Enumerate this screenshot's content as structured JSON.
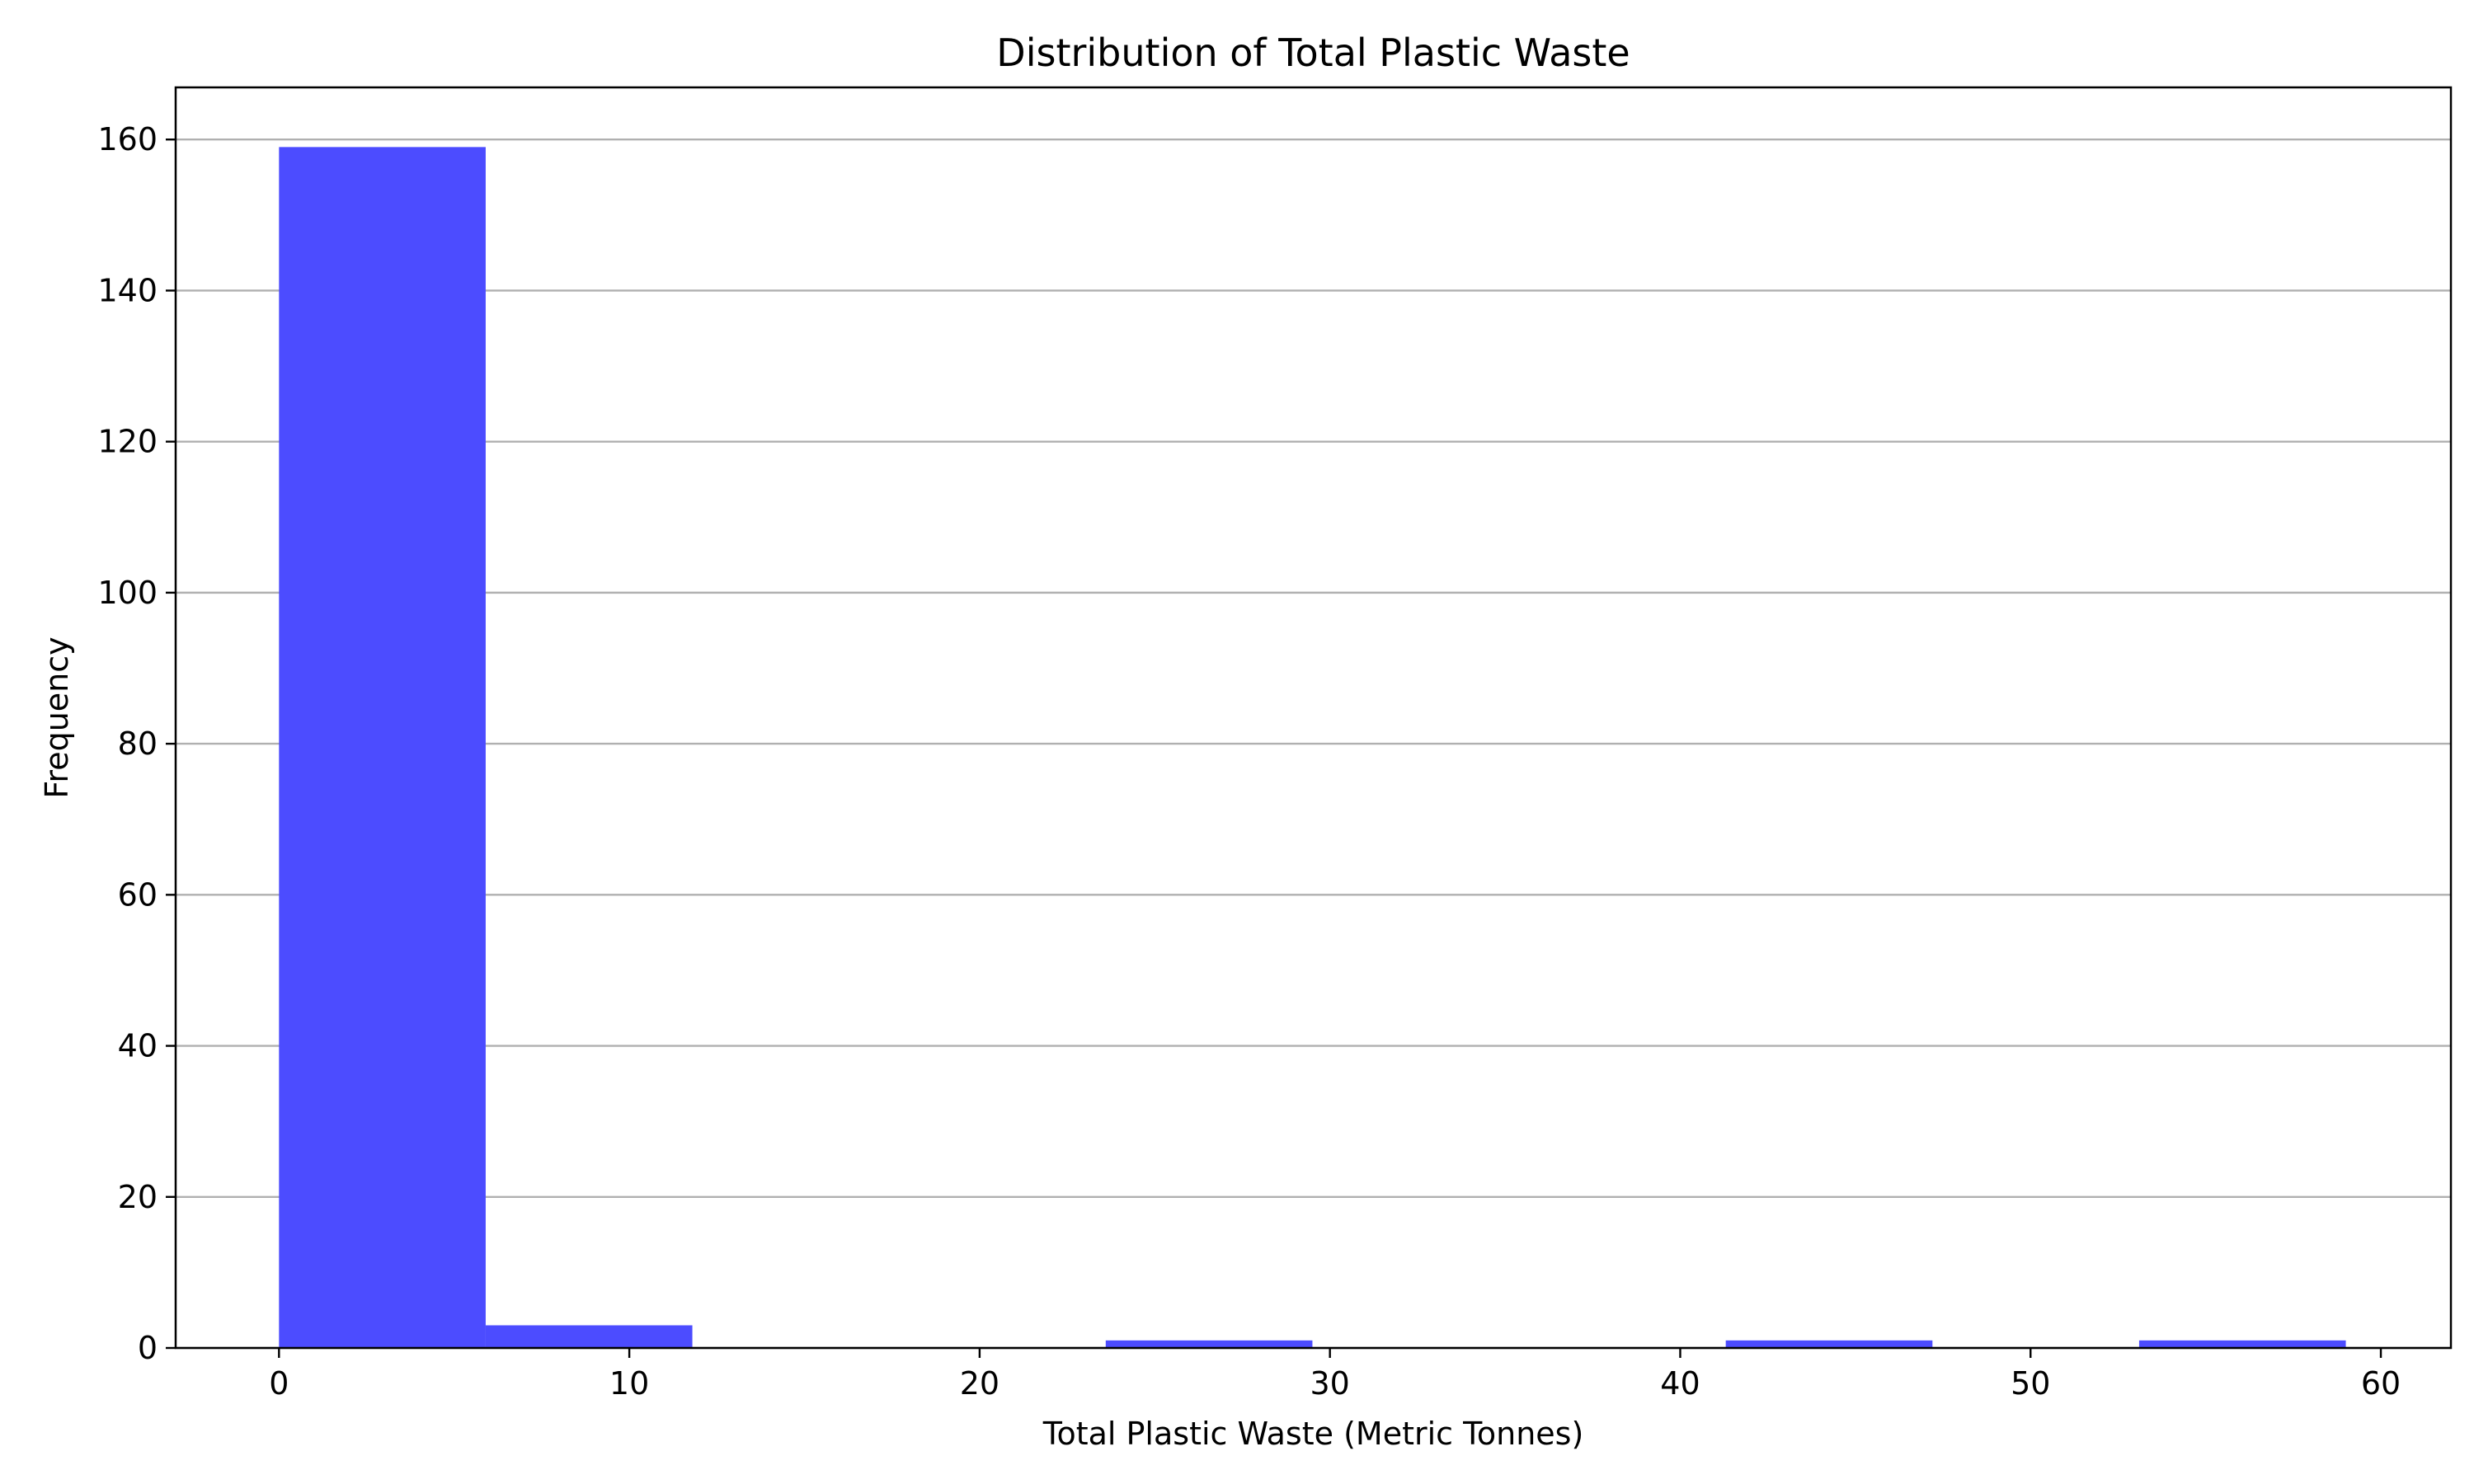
{
  "chart_data": {
    "type": "bar",
    "title": "Distribution of Total Plastic Waste",
    "xlabel": "Total Plastic Waste (Metric Tonnes)",
    "ylabel": "Frequency",
    "xlim": [
      -2.95,
      62.0
    ],
    "ylim": [
      0,
      166.9
    ],
    "xticks": [
      0,
      10,
      20,
      30,
      40,
      50,
      60
    ],
    "yticks": [
      0,
      20,
      40,
      60,
      80,
      100,
      120,
      140,
      160
    ],
    "grid": "horizontal",
    "bar_color": "#4c4cff",
    "bins": [
      {
        "x0": 0.0,
        "x1": 5.9,
        "count": 159
      },
      {
        "x0": 5.9,
        "x1": 11.8,
        "count": 3
      },
      {
        "x0": 11.8,
        "x1": 17.7,
        "count": 0
      },
      {
        "x0": 17.7,
        "x1": 23.6,
        "count": 0
      },
      {
        "x0": 23.6,
        "x1": 29.5,
        "count": 1
      },
      {
        "x0": 29.5,
        "x1": 35.4,
        "count": 0
      },
      {
        "x0": 35.4,
        "x1": 41.3,
        "count": 0
      },
      {
        "x0": 41.3,
        "x1": 47.2,
        "count": 1
      },
      {
        "x0": 47.2,
        "x1": 53.1,
        "count": 0
      },
      {
        "x0": 53.1,
        "x1": 59.0,
        "count": 1
      }
    ]
  }
}
